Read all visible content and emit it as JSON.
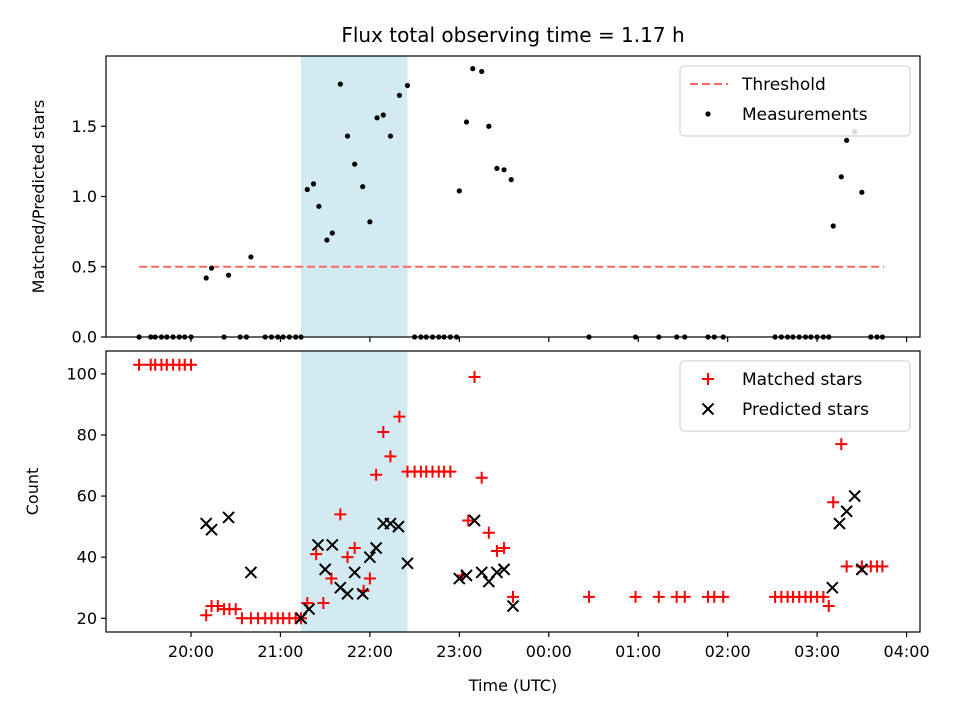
{
  "chart_data": {
    "type": "scatter",
    "title": "Flux total observing time = 1.17 h",
    "xlabel": "Time (UTC)",
    "x_ticks": [
      "20:00",
      "21:00",
      "22:00",
      "23:00",
      "00:00",
      "01:00",
      "02:00",
      "03:00",
      "04:00"
    ],
    "x_tick_hours": [
      20,
      21,
      22,
      23,
      24,
      25,
      26,
      27,
      28
    ],
    "xlim_hours": [
      19.05,
      28.15
    ],
    "shaded_span_hours": [
      21.23,
      22.42
    ],
    "shade_color": "#add8e6",
    "panels": [
      {
        "ylabel": "Matched/Predicted stars",
        "ylim": [
          0,
          2.0
        ],
        "y_ticks": [
          "0.0",
          "0.5",
          "1.0",
          "1.5"
        ],
        "y_tick_values": [
          0.0,
          0.5,
          1.0,
          1.5
        ],
        "legend_position": "upper-right",
        "series": [
          {
            "name": "Threshold",
            "kind": "line",
            "color": "#ff6666",
            "x": [
              19.42,
              27.75
            ],
            "y": [
              0.5,
              0.5
            ]
          },
          {
            "name": "Measurements",
            "kind": "dot",
            "color": "#000000",
            "x": [
              19.42,
              19.55,
              19.6,
              19.67,
              19.73,
              19.8,
              19.87,
              19.93,
              20.0,
              20.17,
              20.23,
              20.37,
              20.42,
              20.55,
              20.62,
              20.67,
              20.83,
              20.9,
              20.97,
              21.03,
              21.1,
              21.17,
              21.23,
              21.3,
              21.37,
              21.43,
              21.52,
              21.58,
              21.67,
              21.75,
              21.83,
              21.92,
              22.0,
              22.08,
              22.15,
              22.23,
              22.33,
              22.42,
              22.5,
              22.57,
              22.63,
              22.7,
              22.77,
              22.83,
              22.9,
              22.97,
              23.0,
              23.08,
              23.15,
              23.25,
              23.33,
              23.42,
              23.5,
              23.58,
              24.45,
              24.97,
              25.23,
              25.43,
              25.52,
              25.78,
              25.85,
              25.95,
              26.53,
              26.6,
              26.67,
              26.73,
              26.8,
              26.87,
              26.93,
              27.0,
              27.07,
              27.13,
              27.18,
              27.27,
              27.33,
              27.42,
              27.5,
              27.6,
              27.67,
              27.73
            ],
            "y": [
              0,
              0,
              0,
              0,
              0,
              0,
              0,
              0,
              0,
              0.42,
              0.49,
              0,
              0.44,
              0,
              0,
              0.57,
              0,
              0,
              0,
              0,
              0,
              0,
              0,
              1.05,
              1.09,
              0.93,
              0.69,
              0.74,
              1.8,
              1.43,
              1.23,
              1.07,
              0.82,
              1.56,
              1.58,
              1.43,
              1.72,
              1.79,
              0,
              0,
              0,
              0,
              0,
              0,
              0,
              0,
              1.04,
              1.53,
              1.91,
              1.89,
              1.5,
              1.2,
              1.19,
              1.12,
              0,
              0,
              0,
              0,
              0,
              0,
              0,
              0,
              0,
              0,
              0,
              0,
              0,
              0,
              0,
              0,
              0,
              0,
              0.79,
              1.14,
              1.4,
              1.46,
              1.03,
              0,
              0,
              0
            ]
          }
        ]
      },
      {
        "ylabel": "Count",
        "ylim": [
          15.5,
          107.5
        ],
        "y_ticks": [
          "20",
          "40",
          "60",
          "80",
          "100"
        ],
        "y_tick_values": [
          20,
          40,
          60,
          80,
          100
        ],
        "legend_position": "upper-right",
        "series": [
          {
            "name": "Matched stars",
            "kind": "plus",
            "color": "#ff0000",
            "x": [
              19.42,
              19.55,
              19.6,
              19.67,
              19.73,
              19.8,
              19.87,
              19.93,
              20.0,
              20.17,
              20.23,
              20.3,
              20.37,
              20.43,
              20.5,
              20.57,
              20.67,
              20.75,
              20.83,
              20.9,
              20.97,
              21.03,
              21.1,
              21.17,
              21.23,
              21.3,
              21.4,
              21.48,
              21.57,
              21.67,
              21.75,
              21.83,
              21.93,
              22.0,
              22.07,
              22.15,
              22.23,
              22.33,
              22.42,
              22.5,
              22.57,
              22.63,
              22.7,
              22.77,
              22.83,
              22.9,
              23.03,
              23.1,
              23.17,
              23.25,
              23.33,
              23.42,
              23.5,
              23.6,
              24.45,
              24.97,
              25.23,
              25.43,
              25.52,
              25.78,
              25.85,
              25.95,
              26.53,
              26.6,
              26.67,
              26.73,
              26.8,
              26.87,
              26.93,
              27.0,
              27.07,
              27.13,
              27.18,
              27.27,
              27.33,
              27.5,
              27.6,
              27.67,
              27.73
            ],
            "y": [
              103,
              103,
              103,
              103,
              103,
              103,
              103,
              103,
              103,
              21,
              24,
              24,
              23,
              23,
              23,
              20,
              20,
              20,
              20,
              20,
              20,
              20,
              20,
              20,
              20,
              25,
              41,
              25,
              33,
              54,
              40,
              43,
              29,
              33,
              67,
              81,
              73,
              86,
              68,
              68,
              68,
              68,
              68,
              68,
              68,
              68,
              34,
              52,
              99,
              66,
              48,
              42,
              43,
              27,
              27,
              27,
              27,
              27,
              27,
              27,
              27,
              27,
              27,
              27,
              27,
              27,
              27,
              27,
              27,
              27,
              27,
              24,
              58,
              77,
              37,
              37,
              37,
              37,
              37
            ]
          },
          {
            "name": "Predicted stars",
            "kind": "x",
            "color": "#000000",
            "x": [
              20.17,
              20.23,
              20.42,
              20.67,
              21.23,
              21.32,
              21.42,
              21.5,
              21.58,
              21.67,
              21.75,
              21.83,
              21.92,
              22.0,
              22.07,
              22.15,
              22.23,
              22.32,
              22.42,
              23.0,
              23.08,
              23.17,
              23.25,
              23.33,
              23.42,
              23.5,
              23.6,
              27.17,
              27.25,
              27.33,
              27.42,
              27.5
            ],
            "y": [
              51,
              49,
              53,
              35,
              20,
              23,
              44,
              36,
              44,
              30,
              28,
              35,
              28,
              40,
              43,
              51,
              51,
              50,
              38,
              33,
              34,
              52,
              35,
              32,
              35,
              36,
              24,
              30,
              51,
              55,
              60,
              36
            ]
          }
        ]
      }
    ]
  }
}
